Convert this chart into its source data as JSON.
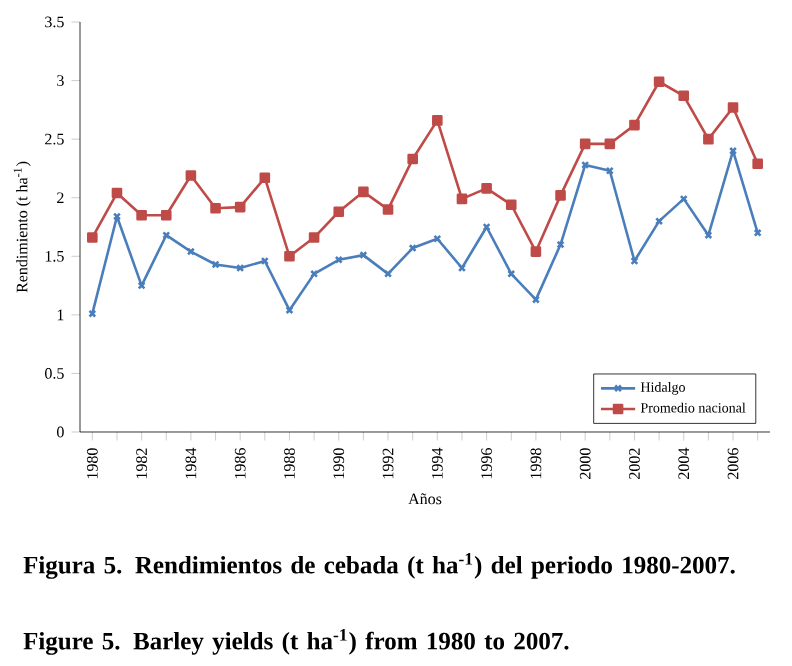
{
  "chart_data": {
    "type": "line",
    "xlabel": "Años",
    "ylabel": "Rendimiento (t ha$^{-1}$)",
    "categories": [
      "1980",
      null,
      "1982",
      null,
      "1984",
      null,
      "1986",
      null,
      "1988",
      null,
      "1990",
      null,
      "1992",
      null,
      "1994",
      null,
      "1996",
      null,
      "1998",
      null,
      "2000",
      null,
      "2002",
      null,
      "2004",
      null,
      "2006",
      null
    ],
    "series": [
      {
        "name": "Hidalgo",
        "color": "#4a7ebb",
        "marker": "cross",
        "values": [
          1.01,
          1.84,
          1.25,
          1.68,
          1.54,
          1.43,
          1.4,
          1.46,
          1.04,
          1.35,
          1.47,
          1.51,
          1.35,
          1.57,
          1.65,
          1.4,
          1.75,
          1.35,
          1.13,
          1.6,
          2.28,
          2.23,
          1.46,
          1.8,
          1.99,
          1.68,
          2.4,
          1.7
        ]
      },
      {
        "name": "Promedio nacional",
        "color": "#be4b48",
        "marker": "square",
        "values": [
          1.66,
          2.04,
          1.85,
          1.85,
          2.19,
          1.91,
          1.92,
          2.17,
          1.5,
          1.66,
          1.88,
          2.05,
          1.9,
          2.33,
          2.66,
          1.99,
          2.08,
          1.94,
          1.54,
          2.02,
          2.46,
          2.46,
          2.62,
          2.99,
          2.87,
          2.5,
          2.77,
          2.29
        ]
      }
    ],
    "ylim": [
      0,
      3.5
    ],
    "yticks": [
      0,
      0.5,
      1,
      1.5,
      2,
      2.5,
      3,
      3.5
    ],
    "grid": false,
    "legend": "bottom right",
    "line_style": "solid",
    "annotations": [
      "**Figura 5. Rendimientos de cebada (t ha$^{-1}$) del periodo 1980-2007.**",
      "**Figure 5. Barley yields (t ha$^{-1}$) from 1980 to 2007.**"
    ]
  }
}
